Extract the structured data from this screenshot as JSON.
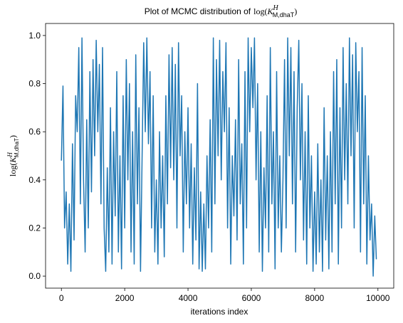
{
  "chart_data": {
    "type": "line",
    "title": "Plot of MCMC distribution of",
    "symbol": {
      "open": "log(",
      "base": "K",
      "sup": "H",
      "sub": "M,dhaT",
      "close": ")"
    },
    "xlabel": "iterations index",
    "xlim": [
      -500,
      10500
    ],
    "xticks": [
      0,
      2000,
      4000,
      6000,
      8000,
      10000
    ],
    "ylim": [
      -0.05,
      1.05
    ],
    "yticks": [
      {
        "value": 0,
        "label": "0.0"
      },
      0.2,
      0.4,
      0.6,
      0.8,
      {
        "value": 1,
        "label": "1.0"
      }
    ],
    "grid": false,
    "x": [
      0,
      50,
      100,
      150,
      200,
      250,
      300,
      350,
      400,
      450,
      500,
      550,
      600,
      650,
      700,
      750,
      800,
      850,
      900,
      950,
      1000,
      1050,
      1100,
      1150,
      1200,
      1250,
      1300,
      1350,
      1400,
      1450,
      1500,
      1550,
      1600,
      1650,
      1700,
      1750,
      1800,
      1850,
      1900,
      1950,
      2000,
      2050,
      2100,
      2150,
      2200,
      2250,
      2300,
      2350,
      2400,
      2450,
      2500,
      2550,
      2600,
      2650,
      2700,
      2750,
      2800,
      2850,
      2900,
      2950,
      3000,
      3050,
      3100,
      3150,
      3200,
      3250,
      3300,
      3350,
      3400,
      3450,
      3500,
      3550,
      3600,
      3650,
      3700,
      3750,
      3800,
      3850,
      3900,
      3950,
      4000,
      4050,
      4100,
      4150,
      4200,
      4250,
      4300,
      4350,
      4400,
      4450,
      4500,
      4550,
      4600,
      4650,
      4700,
      4750,
      4800,
      4850,
      4900,
      4950,
      5000,
      5050,
      5100,
      5150,
      5200,
      5250,
      5300,
      5350,
      5400,
      5450,
      5500,
      5550,
      5600,
      5650,
      5700,
      5750,
      5800,
      5850,
      5900,
      5950,
      6000,
      6050,
      6100,
      6150,
      6200,
      6250,
      6300,
      6350,
      6400,
      6450,
      6500,
      6550,
      6600,
      6650,
      6700,
      6750,
      6800,
      6850,
      6900,
      6950,
      7000,
      7050,
      7100,
      7150,
      7200,
      7250,
      7300,
      7350,
      7400,
      7450,
      7500,
      7550,
      7600,
      7650,
      7700,
      7750,
      7800,
      7850,
      7900,
      7950,
      8000,
      8050,
      8100,
      8150,
      8200,
      8250,
      8300,
      8350,
      8400,
      8450,
      8500,
      8550,
      8600,
      8650,
      8700,
      8750,
      8800,
      8850,
      8900,
      8950,
      9000,
      9050,
      9100,
      9150,
      9200,
      9250,
      9300,
      9350,
      9400,
      9450,
      9500,
      9550,
      9600,
      9650,
      9700,
      9750,
      9800,
      9850,
      9900,
      9950
    ],
    "series": [
      {
        "color": "#1f77b4",
        "values": [
          0.48,
          0.79,
          0.2,
          0.35,
          0.05,
          0.3,
          0.02,
          0.55,
          0.15,
          0.75,
          0.6,
          0.95,
          0.3,
          0.99,
          0.4,
          0.1,
          0.65,
          0.2,
          0.85,
          0.35,
          0.9,
          0.5,
          0.98,
          0.6,
          0.88,
          0.3,
          0.95,
          0.2,
          0.02,
          0.45,
          0.1,
          0.7,
          0.05,
          0.6,
          0.25,
          0.85,
          0.1,
          0.5,
          0.03,
          0.75,
          0.2,
          0.9,
          0.4,
          0.8,
          0.1,
          0.6,
          0.05,
          0.92,
          0.3,
          0.7,
          0.02,
          0.5,
          0.97,
          0.6,
          0.99,
          0.55,
          0.85,
          0.2,
          0.75,
          0.1,
          0.4,
          0.05,
          0.6,
          0.2,
          0.5,
          0.08,
          0.75,
          0.3,
          0.92,
          0.45,
          0.95,
          0.4,
          0.88,
          0.2,
          0.97,
          0.5,
          0.75,
          0.1,
          0.6,
          0.3,
          0.7,
          0.2,
          0.55,
          0.05,
          0.45,
          0.15,
          0.8,
          0.03,
          0.35,
          0.02,
          0.3,
          0.03,
          0.5,
          0.2,
          0.65,
          0.1,
          0.99,
          0.3,
          0.9,
          0.5,
          0.98,
          0.4,
          0.85,
          0.6,
          0.97,
          0.2,
          0.7,
          0.05,
          0.5,
          0.25,
          0.65,
          0.15,
          0.9,
          0.3,
          0.55,
          0.05,
          0.85,
          0.2,
          0.99,
          0.6,
          0.95,
          0.7,
          0.99,
          0.4,
          0.8,
          0.1,
          0.6,
          0.02,
          0.45,
          0.2,
          0.75,
          0.1,
          0.95,
          0.3,
          0.6,
          0.03,
          0.85,
          0.2,
          0.5,
          0.1,
          0.4,
          0.9,
          0.2,
          0.99,
          0.5,
          0.95,
          0.3,
          0.85,
          0.1,
          0.7,
          0.98,
          0.4,
          0.8,
          0.15,
          0.6,
          0.05,
          0.75,
          0.2,
          0.5,
          0.02,
          0.35,
          0.05,
          0.55,
          0.1,
          0.4,
          0.02,
          0.7,
          0.15,
          0.5,
          0.03,
          0.6,
          0.1,
          0.85,
          0.3,
          0.9,
          0.05,
          0.7,
          0.2,
          0.95,
          0.4,
          0.8,
          0.3,
          0.99,
          0.5,
          0.92,
          0.2,
          0.97,
          0.6,
          0.85,
          0.1,
          0.95,
          0.3,
          0.75,
          0.05,
          0.5,
          0.15,
          0.3,
          0.0,
          0.25,
          0.07
        ]
      }
    ]
  }
}
